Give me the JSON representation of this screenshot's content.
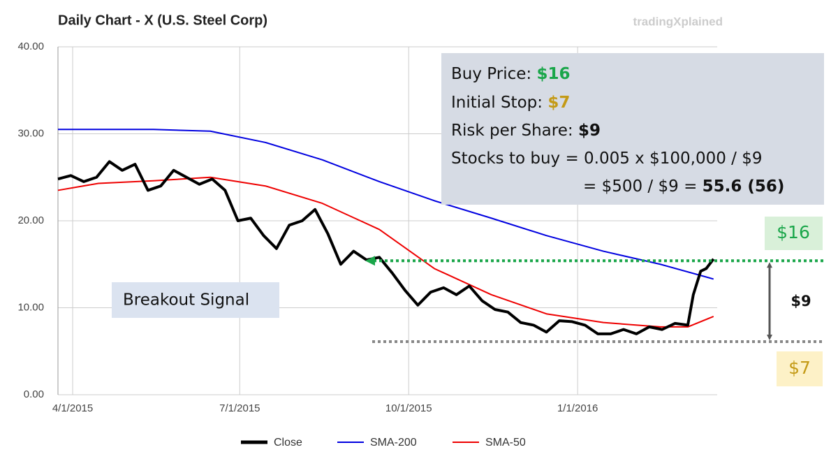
{
  "chart_data": {
    "type": "line",
    "title": "Daily Chart - X (U.S. Steel Corp)",
    "watermark": "tradingXplained",
    "xlim": [
      "3/24/2015",
      "3/17/2016"
    ],
    "xticks": [
      "4/1/2015",
      "7/1/2015",
      "10/1/2015",
      "1/1/2016"
    ],
    "ylim": [
      0,
      40
    ],
    "yticks": [
      {
        "value": 0,
        "label": "0.00"
      },
      {
        "value": 10,
        "label": "10.00"
      },
      {
        "value": 20,
        "label": "20.00"
      },
      {
        "value": 30,
        "label": "30.00"
      },
      {
        "value": 40,
        "label": "40.00"
      }
    ],
    "grid": true,
    "legend": "bottom",
    "series": [
      {
        "name": "Close",
        "color": "#000000",
        "x": [
          "3/24/2015",
          "3/31/2015",
          "4/7/2015",
          "4/14/2015",
          "4/21/2015",
          "4/28/2015",
          "5/5/2015",
          "5/12/2015",
          "5/19/2015",
          "5/26/2015",
          "6/2/2015",
          "6/9/2015",
          "6/16/2015",
          "6/23/2015",
          "6/30/2015",
          "7/7/2015",
          "7/14/2015",
          "7/21/2015",
          "7/28/2015",
          "8/4/2015",
          "8/11/2015",
          "8/18/2015",
          "8/25/2015",
          "9/1/2015",
          "9/8/2015",
          "9/15/2015",
          "9/22/2015",
          "9/29/2015",
          "10/6/2015",
          "10/13/2015",
          "10/20/2015",
          "10/27/2015",
          "11/3/2015",
          "11/10/2015",
          "11/17/2015",
          "11/24/2015",
          "12/1/2015",
          "12/8/2015",
          "12/15/2015",
          "12/22/2015",
          "12/29/2015",
          "1/5/2016",
          "1/12/2016",
          "1/19/2016",
          "1/26/2016",
          "2/2/2016",
          "2/9/2016",
          "2/16/2016",
          "2/23/2016",
          "3/1/2016",
          "3/4/2016",
          "3/8/2016",
          "3/11/2016",
          "3/15/2016"
        ],
        "values": [
          24.8,
          25.2,
          24.5,
          25.0,
          26.8,
          25.8,
          26.5,
          23.5,
          24.0,
          25.8,
          25.0,
          24.2,
          24.8,
          23.5,
          20.0,
          20.3,
          18.3,
          16.8,
          19.5,
          20.0,
          21.3,
          18.5,
          15.0,
          16.5,
          15.5,
          15.8,
          14.0,
          12.0,
          10.3,
          11.8,
          12.3,
          11.5,
          12.5,
          10.8,
          9.8,
          9.5,
          8.3,
          8.0,
          7.2,
          8.5,
          8.4,
          8.0,
          7.0,
          7.0,
          7.5,
          7.0,
          7.8,
          7.5,
          8.2,
          8.0,
          11.5,
          14.2,
          14.5,
          15.6
        ]
      },
      {
        "name": "SMA-200",
        "color": "#0000e0",
        "x": [
          "3/24/2015",
          "4/15/2015",
          "5/15/2015",
          "6/15/2015",
          "7/15/2015",
          "8/15/2015",
          "9/15/2015",
          "10/15/2015",
          "11/15/2015",
          "12/15/2015",
          "1/15/2016",
          "2/15/2016",
          "3/15/2016"
        ],
        "values": [
          30.5,
          30.5,
          30.5,
          30.3,
          29.0,
          27.0,
          24.5,
          22.3,
          20.3,
          18.3,
          16.5,
          15.0,
          13.3
        ]
      },
      {
        "name": "SMA-50",
        "color": "#ee0000",
        "x": [
          "3/24/2015",
          "4/15/2015",
          "5/15/2015",
          "6/15/2015",
          "7/15/2015",
          "8/15/2015",
          "9/15/2015",
          "10/15/2015",
          "11/15/2015",
          "12/15/2015",
          "1/15/2016",
          "2/15/2016",
          "3/1/2016",
          "3/15/2016"
        ],
        "values": [
          23.5,
          24.3,
          24.6,
          25.0,
          24.0,
          22.0,
          19.0,
          14.5,
          11.5,
          9.3,
          8.3,
          7.8,
          7.8,
          9.0
        ]
      }
    ],
    "levels": [
      {
        "value": 15.4,
        "color": "#1aa64a"
      },
      {
        "value": 6.1,
        "color": "#888888"
      }
    ],
    "annotations": {
      "info": [
        {
          "text": "Buy Price: ",
          "value": "$16"
        },
        {
          "text": "Initial Stop: ",
          "value": "$7"
        },
        {
          "text": "Risk per Share: ",
          "value": "$9"
        },
        {
          "text": "Stocks to buy = 0.005 x $100,000 / $9"
        },
        {
          "text": "= $500 / $9 = ",
          "value": "55.6 (56)"
        }
      ],
      "breakout": "Breakout Signal",
      "buy_label": "$16",
      "risk_label": "$9",
      "stop_label": "$7"
    }
  }
}
